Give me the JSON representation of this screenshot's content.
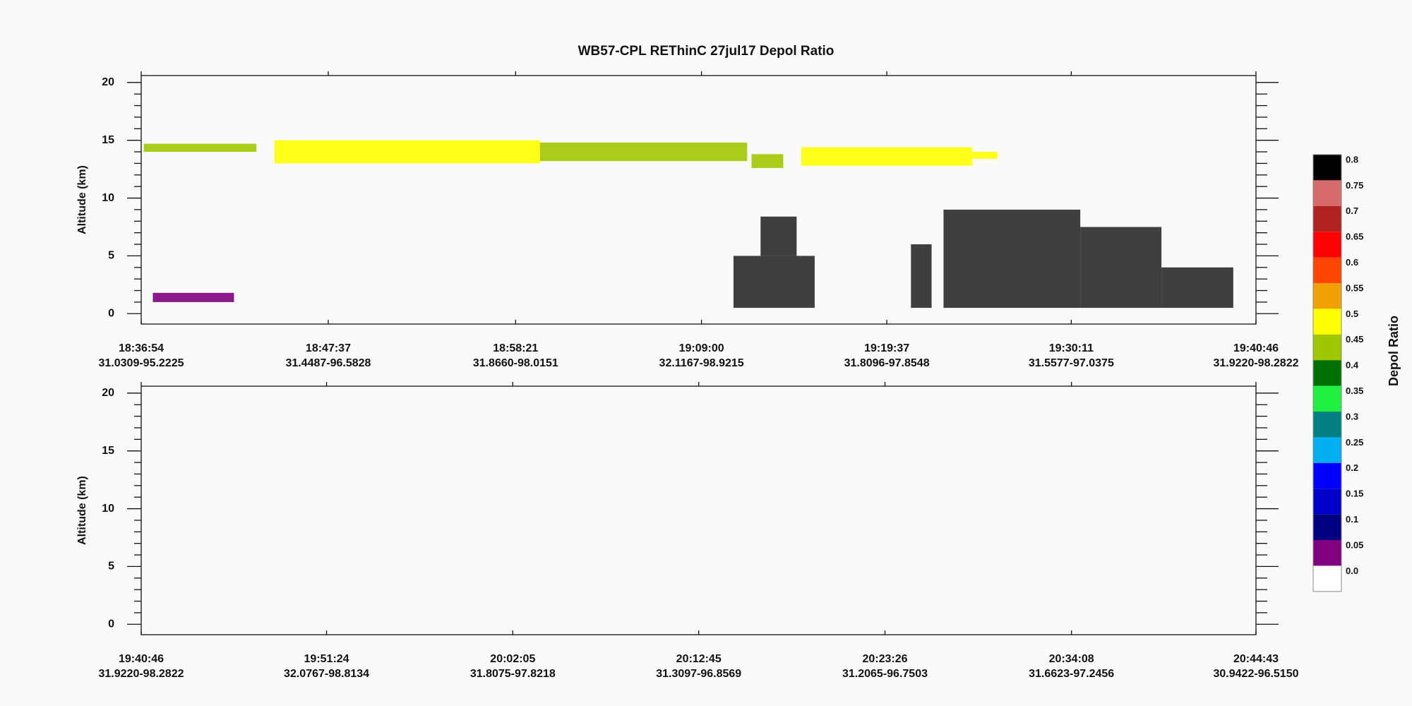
{
  "title": "WB57-CPL REThinC 27jul17 Depol Ratio",
  "chart_data": [
    {
      "type": "heatmap",
      "ylabel": "Altitude (km)",
      "ylim": [
        -0.9,
        20.6
      ],
      "yticks": [
        0,
        5,
        10,
        15,
        20
      ],
      "xlim": [
        "18:36:54",
        "19:40:46"
      ],
      "xticks": [
        {
          "time": "18:36:54",
          "position": "31.0309-95.2225"
        },
        {
          "time": "18:47:37",
          "position": "31.4487-96.5828"
        },
        {
          "time": "18:58:21",
          "position": "31.8660-98.0151"
        },
        {
          "time": "19:09:00",
          "position": "32.1167-98.9215"
        },
        {
          "time": "19:19:37",
          "position": "31.8096-97.8548"
        },
        {
          "time": "19:30:11",
          "position": "31.5577-97.0375"
        },
        {
          "time": "19:40:46",
          "position": "31.9220-98.2822"
        }
      ],
      "cloud_patches": [
        {
          "x": [
            "18:37:03",
            "18:43:30"
          ],
          "y": [
            14.0,
            14.7
          ],
          "value": 0.45
        },
        {
          "x": [
            "18:44:32",
            "18:59:45"
          ],
          "y": [
            13.0,
            15.0
          ],
          "value": 0.5
        },
        {
          "x": [
            "18:59:45",
            "19:11:37"
          ],
          "y": [
            13.2,
            14.8
          ],
          "value": 0.45
        },
        {
          "x": [
            "19:11:52",
            "19:13:41"
          ],
          "y": [
            12.6,
            13.8
          ],
          "value": 0.45
        },
        {
          "x": [
            "19:14:43",
            "19:24:31"
          ],
          "y": [
            12.8,
            14.4
          ],
          "value": 0.5
        },
        {
          "x": [
            "19:24:31",
            "19:25:57"
          ],
          "y": [
            13.4,
            14.0
          ],
          "value": 0.5
        },
        {
          "x": [
            "18:37:34",
            "18:42:13"
          ],
          "y": [
            1.0,
            1.8
          ],
          "value": 0.05
        },
        {
          "x": [
            "19:10:50",
            "19:15:29"
          ],
          "y": [
            0.5,
            5.0
          ],
          "value": 0.8
        },
        {
          "x": [
            "19:12:23",
            "19:14:27"
          ],
          "y": [
            5.0,
            8.4
          ],
          "value": 0.8
        },
        {
          "x": [
            "19:21:00",
            "19:22:11"
          ],
          "y": [
            0.5,
            6.0
          ],
          "value": 0.8
        },
        {
          "x": [
            "19:22:52",
            "19:30:42"
          ],
          "y": [
            0.5,
            9.0
          ],
          "value": 0.8
        },
        {
          "x": [
            "19:30:42",
            "19:35:21"
          ],
          "y": [
            0.5,
            7.5
          ],
          "value": 0.8
        },
        {
          "x": [
            "19:35:21",
            "19:39:28"
          ],
          "y": [
            0.5,
            4.0
          ],
          "value": 0.8
        }
      ]
    },
    {
      "type": "heatmap",
      "ylabel": "Altitude (km)",
      "ylim": [
        -0.9,
        20.6
      ],
      "yticks": [
        0,
        5,
        10,
        15,
        20
      ],
      "xlim": [
        "19:40:46",
        "20:44:43"
      ],
      "xticks": [
        {
          "time": "19:40:46",
          "position": "31.9220-98.2822"
        },
        {
          "time": "19:51:24",
          "position": "32.0767-98.8134"
        },
        {
          "time": "20:02:05",
          "position": "31.8075-97.8218"
        },
        {
          "time": "20:12:45",
          "position": "31.3097-96.8569"
        },
        {
          "time": "20:23:26",
          "position": "31.2065-96.7503"
        },
        {
          "time": "20:34:08",
          "position": "31.6623-97.2456"
        },
        {
          "time": "20:44:43",
          "position": "30.9422-96.5150"
        }
      ],
      "cloud_patches": []
    }
  ],
  "colorbar": {
    "title": "Depol Ratio",
    "levels": [
      0.8,
      0.75,
      0.7,
      0.65,
      0.6,
      0.55,
      0.5,
      0.45,
      0.4,
      0.35,
      0.3,
      0.25,
      0.2,
      0.15,
      0.1,
      0.05,
      0.0
    ],
    "level_labels": [
      "0.8",
      "0.75",
      "0.7",
      "0.65",
      "0.6",
      "0.55",
      "0.5",
      "0.45",
      "0.4",
      "0.35",
      "0.3",
      "0.25",
      "0.2",
      "0.15",
      "0.1",
      "0.05",
      "0.0"
    ],
    "colors": [
      "#000000",
      "#d86a6a",
      "#b22222",
      "#ff0000",
      "#ff4500",
      "#f0a000",
      "#ffff00",
      "#a0c800",
      "#007000",
      "#20f040",
      "#008080",
      "#00b0f0",
      "#0000ff",
      "#0000c8",
      "#000080",
      "#800080",
      "#ffffff"
    ]
  }
}
